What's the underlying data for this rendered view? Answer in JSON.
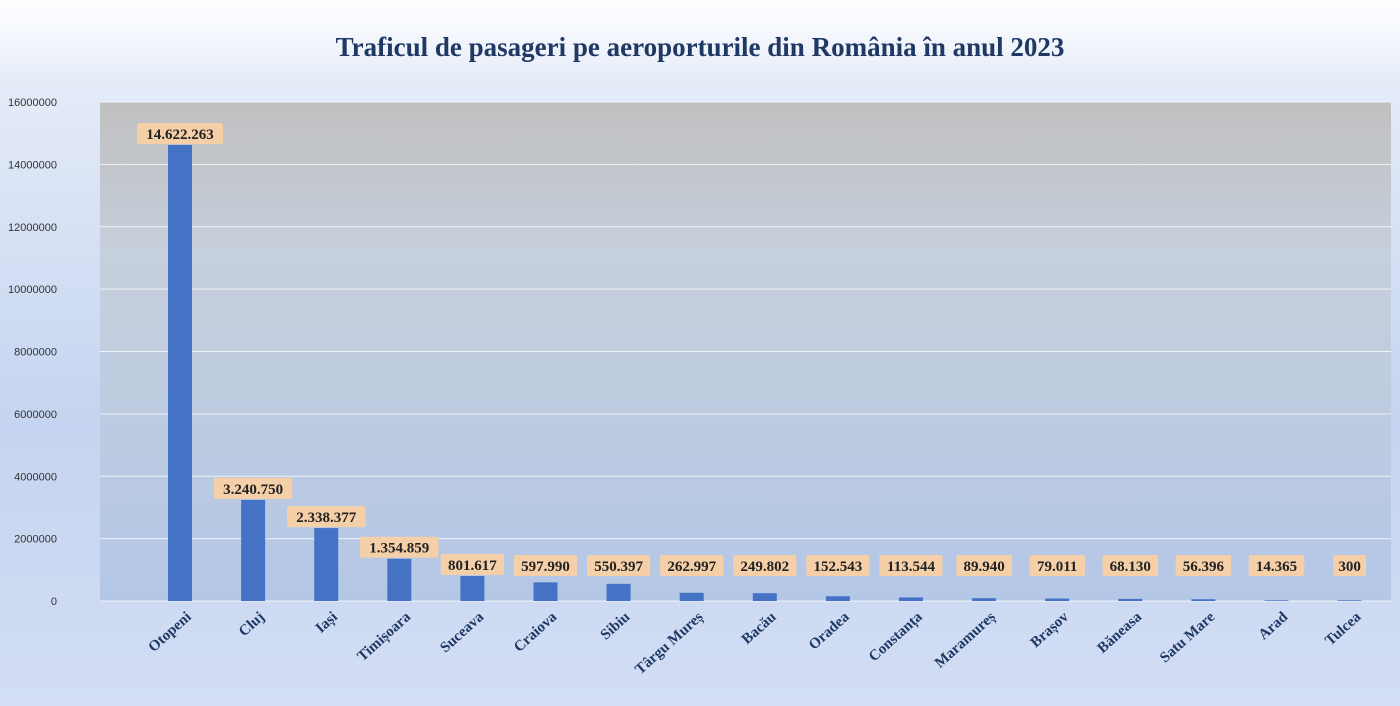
{
  "chart_data": {
    "type": "bar",
    "title": "Traficul de pasageri pe aeroporturile din România în anul 2023",
    "xlabel": "",
    "ylabel": "",
    "ylim": [
      0,
      16000000
    ],
    "yticks": [
      "0",
      "2000000",
      "4000000",
      "6000000",
      "8000000",
      "10000000",
      "12000000",
      "14000000",
      "16000000"
    ],
    "grid": true,
    "categories": [
      "Otopeni",
      "Cluj",
      "Iași",
      "Timișoara",
      "Suceava",
      "Craiova",
      "Sibiu",
      "Târgu Mureș",
      "Bacău",
      "Oradea",
      "Constanța",
      "Maramureș",
      "Brașov",
      "Băneasa",
      "Satu Mare",
      "Arad",
      "Tulcea"
    ],
    "values": [
      14622263,
      3240750,
      2338377,
      1354859,
      801617,
      597990,
      550397,
      262997,
      249802,
      152543,
      113544,
      89940,
      79011,
      68130,
      56396,
      14365,
      300
    ],
    "data_labels": [
      "14.622.263",
      "3.240.750",
      "2.338.377",
      "1.354.859",
      "801.617",
      "597.990",
      "550.397",
      "262.997",
      "249.802",
      "152.543",
      "113.544",
      "89.940",
      "79.011",
      "68.130",
      "56.396",
      "14.365",
      "300"
    ],
    "colors": {
      "bar": "#4472c4",
      "plot_top": "#c0c0c0",
      "plot_bottom": "#b4c7e7",
      "label_box": "#f4cfa8"
    }
  }
}
